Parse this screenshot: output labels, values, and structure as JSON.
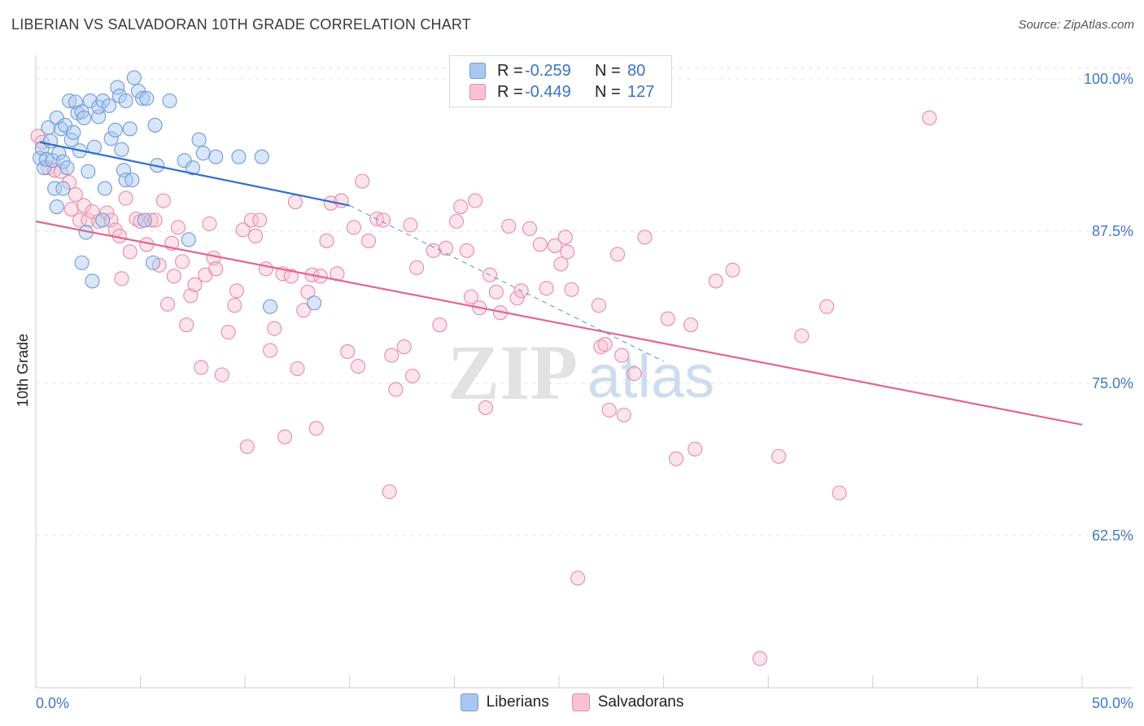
{
  "title": "LIBERIAN VS SALVADORAN 10TH GRADE CORRELATION CHART",
  "source": "Source: ZipAtlas.com",
  "watermark": {
    "zip": "ZIP",
    "atlas": "atlas"
  },
  "legend": {
    "r_label": "R =",
    "n_label": "N =",
    "rows": [
      {
        "r": "-0.259",
        "n": "80",
        "color": "#a9c7f0",
        "border": "#6f9bd8"
      },
      {
        "r": "-0.449",
        "n": "127",
        "color": "#f7c3d2",
        "border": "#e88aa8"
      }
    ]
  },
  "chart_data": {
    "type": "scatter",
    "title": "LIBERIAN VS SALVADORAN 10TH GRADE CORRELATION CHART",
    "xlabel": "",
    "ylabel": "10th Grade",
    "xlim": [
      0,
      50
    ],
    "ylim": [
      50,
      101
    ],
    "x_tick_labels": [
      "0.0%",
      "50.0%"
    ],
    "y_ticks": [
      62.5,
      75.0,
      87.5,
      100.0
    ],
    "y_tick_labels": [
      "62.5%",
      "75.0%",
      "87.5%",
      "100.0%"
    ],
    "grid": true,
    "legend_position": "top-center",
    "series": [
      {
        "name": "Liberians",
        "color": "#6f9bd8",
        "fill": "#a9c7f0",
        "trend": {
          "x": [
            0.2,
            15.0
          ],
          "y": [
            94.8,
            89.6
          ],
          "dashed_to": [
            30.0,
            76.8
          ]
        },
        "points": [
          [
            0.2,
            93.5
          ],
          [
            0.3,
            94.3
          ],
          [
            0.4,
            92.7
          ],
          [
            0.5,
            93.4
          ],
          [
            0.6,
            96.0
          ],
          [
            0.7,
            94.9
          ],
          [
            0.8,
            93.3
          ],
          [
            0.9,
            91.0
          ],
          [
            1.0,
            89.5
          ],
          [
            1.0,
            96.8
          ],
          [
            1.1,
            93.9
          ],
          [
            1.2,
            95.9
          ],
          [
            1.3,
            93.2
          ],
          [
            1.3,
            91.0
          ],
          [
            1.4,
            96.2
          ],
          [
            1.5,
            92.7
          ],
          [
            1.6,
            98.2
          ],
          [
            1.7,
            95.0
          ],
          [
            1.8,
            95.6
          ],
          [
            1.9,
            98.1
          ],
          [
            2.0,
            97.2
          ],
          [
            2.1,
            94.1
          ],
          [
            2.2,
            97.3
          ],
          [
            2.2,
            84.9
          ],
          [
            2.3,
            96.8
          ],
          [
            2.4,
            87.4
          ],
          [
            2.5,
            92.4
          ],
          [
            2.6,
            98.2
          ],
          [
            2.7,
            83.4
          ],
          [
            2.8,
            94.4
          ],
          [
            3.0,
            96.9
          ],
          [
            3.0,
            97.7
          ],
          [
            3.2,
            98.2
          ],
          [
            3.2,
            88.4
          ],
          [
            3.3,
            91.0
          ],
          [
            3.5,
            97.8
          ],
          [
            3.6,
            95.1
          ],
          [
            3.8,
            95.8
          ],
          [
            3.9,
            99.3
          ],
          [
            4.0,
            98.6
          ],
          [
            4.1,
            94.2
          ],
          [
            4.2,
            92.5
          ],
          [
            4.3,
            98.2
          ],
          [
            4.3,
            91.7
          ],
          [
            4.5,
            95.9
          ],
          [
            4.6,
            91.7
          ],
          [
            4.7,
            100.1
          ],
          [
            4.9,
            99.0
          ],
          [
            5.1,
            98.4
          ],
          [
            5.2,
            88.4
          ],
          [
            5.3,
            98.4
          ],
          [
            5.6,
            84.9
          ],
          [
            5.7,
            96.2
          ],
          [
            5.8,
            92.9
          ],
          [
            6.4,
            98.2
          ],
          [
            7.1,
            93.3
          ],
          [
            7.3,
            86.8
          ],
          [
            7.5,
            92.7
          ],
          [
            7.8,
            95.0
          ],
          [
            8.0,
            93.9
          ],
          [
            8.6,
            93.6
          ],
          [
            9.7,
            93.6
          ],
          [
            10.8,
            93.6
          ],
          [
            11.2,
            81.3
          ],
          [
            13.3,
            81.6
          ]
        ]
      },
      {
        "name": "Salvadorans",
        "color": "#e88aa8",
        "fill": "#f7c3d2",
        "trend": {
          "x": [
            0.0,
            50.0
          ],
          "y": [
            88.3,
            71.6
          ]
        },
        "points": [
          [
            0.1,
            95.3
          ],
          [
            0.3,
            94.8
          ],
          [
            0.6,
            92.7
          ],
          [
            0.9,
            92.5
          ],
          [
            1.2,
            92.4
          ],
          [
            1.6,
            91.5
          ],
          [
            1.7,
            89.3
          ],
          [
            1.9,
            90.5
          ],
          [
            2.1,
            88.4
          ],
          [
            2.3,
            89.6
          ],
          [
            2.5,
            88.4
          ],
          [
            2.7,
            89.1
          ],
          [
            3.0,
            88.3
          ],
          [
            3.4,
            89.0
          ],
          [
            3.6,
            88.4
          ],
          [
            3.8,
            87.6
          ],
          [
            4.0,
            87.1
          ],
          [
            4.1,
            83.6
          ],
          [
            4.3,
            90.2
          ],
          [
            4.5,
            85.8
          ],
          [
            4.8,
            88.5
          ],
          [
            5.0,
            88.3
          ],
          [
            5.3,
            86.4
          ],
          [
            5.5,
            88.4
          ],
          [
            5.7,
            88.4
          ],
          [
            5.9,
            84.7
          ],
          [
            6.1,
            90.0
          ],
          [
            6.3,
            81.5
          ],
          [
            6.5,
            86.5
          ],
          [
            6.6,
            83.8
          ],
          [
            6.8,
            87.8
          ],
          [
            7.0,
            85.0
          ],
          [
            7.2,
            79.8
          ],
          [
            7.4,
            82.2
          ],
          [
            7.6,
            83.1
          ],
          [
            7.9,
            76.3
          ],
          [
            8.1,
            83.9
          ],
          [
            8.3,
            88.1
          ],
          [
            8.5,
            85.3
          ],
          [
            8.6,
            84.4
          ],
          [
            8.9,
            75.7
          ],
          [
            9.2,
            79.2
          ],
          [
            9.5,
            81.4
          ],
          [
            9.6,
            82.6
          ],
          [
            9.9,
            87.6
          ],
          [
            10.1,
            69.8
          ],
          [
            10.3,
            88.4
          ],
          [
            10.5,
            87.1
          ],
          [
            10.7,
            88.4
          ],
          [
            11.0,
            84.4
          ],
          [
            11.2,
            77.7
          ],
          [
            11.4,
            79.5
          ],
          [
            11.8,
            84.0
          ],
          [
            11.9,
            70.6
          ],
          [
            12.2,
            83.8
          ],
          [
            12.4,
            89.9
          ],
          [
            12.5,
            76.2
          ],
          [
            12.8,
            81.0
          ],
          [
            13.0,
            82.5
          ],
          [
            13.2,
            83.9
          ],
          [
            13.4,
            71.3
          ],
          [
            13.6,
            83.8
          ],
          [
            13.9,
            86.7
          ],
          [
            14.1,
            89.8
          ],
          [
            14.4,
            84.0
          ],
          [
            14.6,
            90.0
          ],
          [
            14.9,
            77.6
          ],
          [
            15.2,
            87.8
          ],
          [
            15.4,
            76.4
          ],
          [
            15.6,
            91.6
          ],
          [
            15.9,
            86.7
          ],
          [
            16.3,
            88.5
          ],
          [
            16.6,
            88.4
          ],
          [
            16.9,
            66.1
          ],
          [
            17.0,
            77.3
          ],
          [
            17.2,
            74.5
          ],
          [
            17.6,
            78.0
          ],
          [
            17.9,
            88.0
          ],
          [
            18.0,
            75.6
          ],
          [
            18.2,
            84.5
          ],
          [
            19.0,
            85.9
          ],
          [
            19.3,
            79.8
          ],
          [
            19.6,
            86.1
          ],
          [
            20.1,
            88.3
          ],
          [
            20.3,
            89.5
          ],
          [
            20.6,
            85.9
          ],
          [
            20.8,
            82.1
          ],
          [
            21.0,
            90.0
          ],
          [
            21.2,
            81.2
          ],
          [
            21.5,
            73.0
          ],
          [
            21.7,
            83.9
          ],
          [
            22.0,
            82.5
          ],
          [
            22.2,
            80.8
          ],
          [
            22.6,
            87.9
          ],
          [
            23.0,
            82.0
          ],
          [
            23.2,
            82.6
          ],
          [
            23.6,
            87.7
          ],
          [
            24.1,
            86.4
          ],
          [
            24.4,
            82.8
          ],
          [
            24.8,
            86.3
          ],
          [
            25.1,
            84.8
          ],
          [
            25.3,
            87.0
          ],
          [
            25.4,
            85.8
          ],
          [
            25.6,
            82.7
          ],
          [
            25.9,
            59.0
          ],
          [
            26.9,
            81.4
          ],
          [
            27.0,
            78.0
          ],
          [
            27.2,
            78.2
          ],
          [
            27.4,
            72.8
          ],
          [
            27.8,
            85.6
          ],
          [
            28.0,
            77.3
          ],
          [
            28.1,
            72.4
          ],
          [
            28.6,
            75.8
          ],
          [
            29.1,
            87.0
          ],
          [
            30.2,
            80.3
          ],
          [
            30.6,
            68.8
          ],
          [
            31.3,
            79.8
          ],
          [
            31.5,
            69.6
          ],
          [
            32.5,
            83.4
          ],
          [
            33.3,
            84.3
          ],
          [
            34.6,
            52.4
          ],
          [
            35.5,
            69.0
          ],
          [
            36.6,
            78.9
          ],
          [
            37.8,
            81.3
          ],
          [
            38.4,
            66.0
          ],
          [
            42.7,
            96.8
          ]
        ]
      }
    ]
  }
}
